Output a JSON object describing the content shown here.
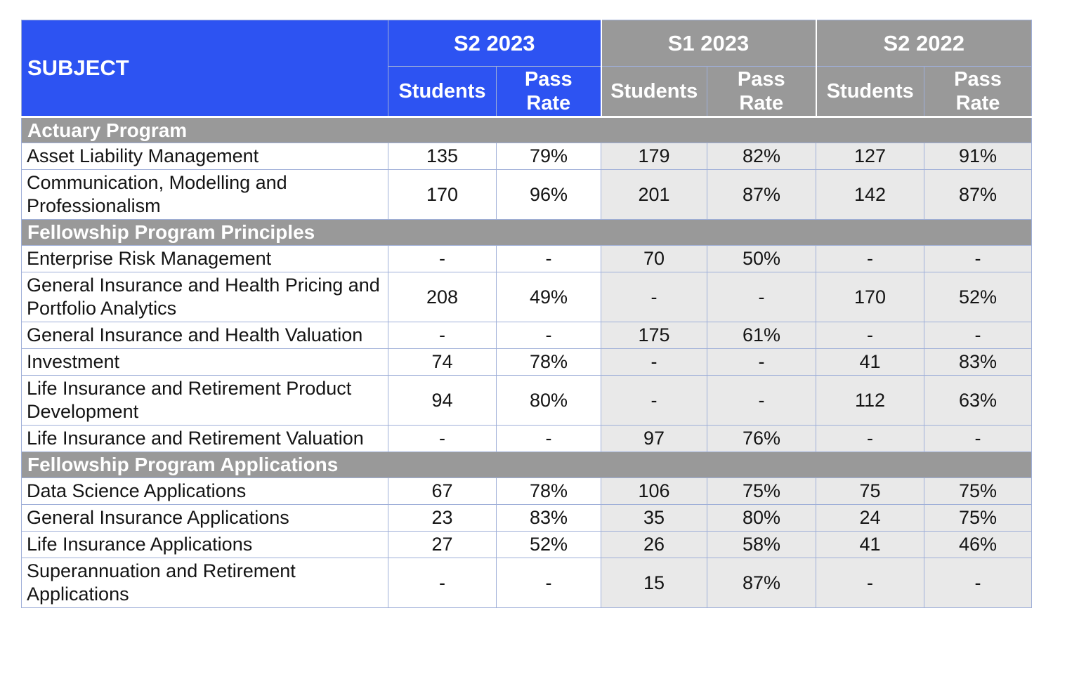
{
  "chart_data": {
    "type": "table",
    "subject_header": "SUBJECT",
    "periods": [
      "S2 2023",
      "S1 2023",
      "S2 2022"
    ],
    "subcolumns": [
      "Students",
      "Pass Rate"
    ],
    "sections": [
      {
        "title": "Actuary Program",
        "rows": [
          {
            "subject": "Asset Liability Management",
            "values": [
              "135",
              "79%",
              "179",
              "82%",
              "127",
              "91%"
            ]
          },
          {
            "subject": "Communication, Modelling and Professionalism",
            "values": [
              "170",
              "96%",
              "201",
              "87%",
              "142",
              "87%"
            ]
          }
        ]
      },
      {
        "title": "Fellowship Program Principles",
        "rows": [
          {
            "subject": "Enterprise Risk Management",
            "values": [
              "-",
              "-",
              "70",
              "50%",
              "-",
              "-"
            ]
          },
          {
            "subject": "General Insurance and Health Pricing and Portfolio Analytics",
            "values": [
              "208",
              "49%",
              "-",
              "-",
              "170",
              "52%"
            ]
          },
          {
            "subject": "General Insurance and Health Valuation",
            "values": [
              "-",
              "-",
              "175",
              "61%",
              "-",
              "-"
            ]
          },
          {
            "subject": "Investment",
            "values": [
              "74",
              "78%",
              "-",
              "-",
              "41",
              "83%"
            ]
          },
          {
            "subject": "Life Insurance and Retirement Product Development",
            "values": [
              "94",
              "80%",
              "-",
              "-",
              "112",
              "63%"
            ]
          },
          {
            "subject": "Life Insurance and Retirement Valuation",
            "values": [
              "-",
              "-",
              "97",
              "76%",
              "-",
              "-"
            ]
          }
        ]
      },
      {
        "title": "Fellowship Program Applications",
        "rows": [
          {
            "subject": "Data Science Applications",
            "values": [
              "67",
              "78%",
              "106",
              "75%",
              "75",
              "75%"
            ]
          },
          {
            "subject": "General Insurance Applications",
            "values": [
              "23",
              "83%",
              "35",
              "80%",
              "24",
              "75%"
            ]
          },
          {
            "subject": "Life Insurance Applications",
            "values": [
              "27",
              "52%",
              "26",
              "58%",
              "41",
              "46%"
            ]
          },
          {
            "subject": "Superannuation and Retirement Applications",
            "values": [
              "-",
              "-",
              "15",
              "87%",
              "-",
              "-"
            ]
          }
        ]
      }
    ]
  },
  "colors": {
    "accent_blue": "#2D53F2",
    "header_gray": "#999999",
    "cell_gray": "#E9E9E9",
    "grid_border": "#9FAFD8",
    "header_text": "#FFFFFF",
    "body_text": "#141414"
  }
}
